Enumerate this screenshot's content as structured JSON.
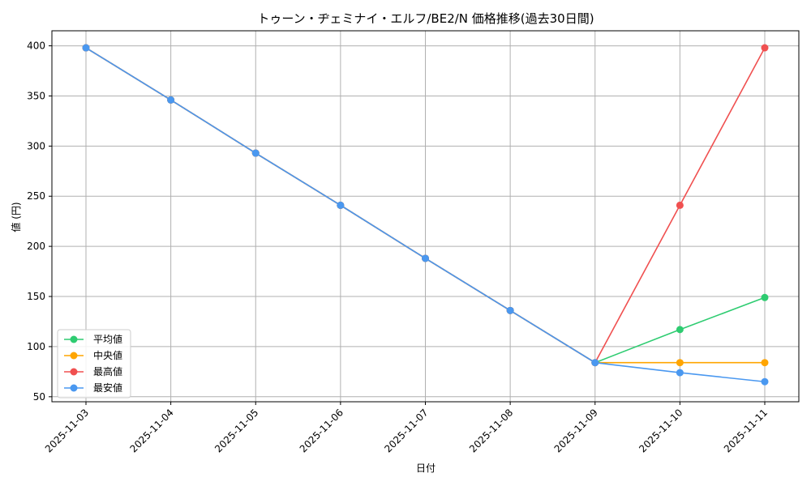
{
  "chart_data": {
    "type": "line",
    "title": "トゥーン・ヂェミナイ・エルフ/BE2/N 価格推移(過去30日間)",
    "xlabel": "日付",
    "ylabel": "値 (円)",
    "categories": [
      "2025-11-03",
      "2025-11-04",
      "2025-11-05",
      "2025-11-06",
      "2025-11-07",
      "2025-11-08",
      "2025-11-09",
      "2025-11-10",
      "2025-11-11"
    ],
    "ylim": [
      45,
      415
    ],
    "yticks": [
      50,
      100,
      150,
      200,
      250,
      300,
      350,
      400
    ],
    "grid": true,
    "legend_position": "lower-left",
    "series": [
      {
        "name": "平均値",
        "color": "#2ecc71",
        "values": [
          398,
          346,
          293,
          241,
          188,
          136,
          84,
          117,
          149
        ]
      },
      {
        "name": "中央値",
        "color": "#ffa500",
        "values": [
          398,
          346,
          293,
          241,
          188,
          136,
          84,
          84,
          84
        ]
      },
      {
        "name": "最高値",
        "color": "#f05050",
        "values": [
          398,
          346,
          293,
          241,
          188,
          136,
          84,
          241,
          398
        ]
      },
      {
        "name": "最安値",
        "color": "#4a98f0",
        "values": [
          398,
          346,
          293,
          241,
          188,
          136,
          84,
          74,
          65
        ]
      }
    ]
  }
}
